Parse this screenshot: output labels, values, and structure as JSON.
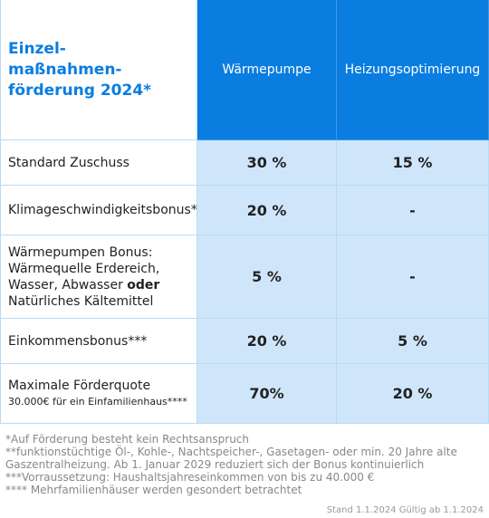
{
  "header": {
    "title": [
      "Einzel-",
      "maßnahmen-",
      "förderung 2024*"
    ],
    "columns": [
      "Wärmepumpe",
      "Heizungsoptimierung"
    ]
  },
  "table": {
    "rows": [
      {
        "label": [
          "Standard Zuschuss"
        ],
        "values": [
          "30 %",
          "15 %"
        ]
      },
      {
        "label": [
          "Klimageschwindigkeitsbonus**"
        ],
        "values": [
          "20 %",
          "-"
        ]
      },
      {
        "label": [
          "Wärmepumpen Bonus: Wärmequelle Erdereich, Wasser, Abwasser ",
          "oder",
          " Natürliches Kältemittel"
        ],
        "values": [
          "5 %",
          "-"
        ]
      },
      {
        "label": [
          "Einkommensbonus***"
        ],
        "values": [
          "20 %",
          "5 %"
        ]
      },
      {
        "label": [
          "Maximale Förderquote"
        ],
        "sublabel": "30.000€ für ein Einfamilienhaus****",
        "values": [
          "70%",
          "20 %"
        ]
      }
    ]
  },
  "footnotes": [
    "*Auf Förderung besteht kein Rechtsanspruch",
    "**funktionstüchtige Öl-, Kohle-, Nachtspeicher-, Gasetagen- oder min. 20 Jahre alte Gaszentralheizung. Ab 1. Januar 2029 reduziert sich der Bonus kontinuierlich",
    "***Vorraussetzung: Haushaltsjahreseinkommen von bis zu 40.000 €",
    "**** Mehrfamilienhäuser werden gesondert betrachtet"
  ],
  "stand": "Stand 1.1.2024 Gültig ab 1.1.2024"
}
